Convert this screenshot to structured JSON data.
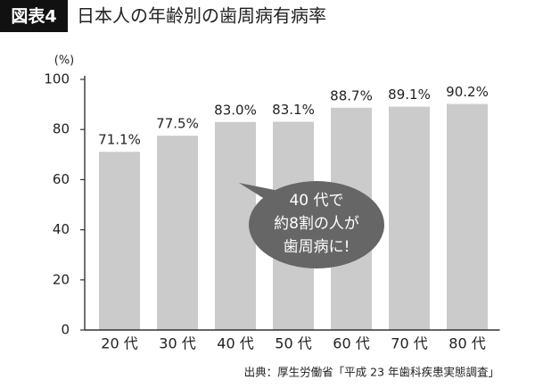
{
  "chart_data": {
    "type": "bar",
    "badge": "図表4",
    "title": "日本人の年齢別の歯周病有病率",
    "y_unit": "(%)",
    "categories": [
      "20 代",
      "30 代",
      "40 代",
      "50 代",
      "60 代",
      "70 代",
      "80 代"
    ],
    "values": [
      71.1,
      77.5,
      83.0,
      83.1,
      88.7,
      89.1,
      90.2
    ],
    "value_labels": [
      "71.1%",
      "77.5%",
      "83.0%",
      "83.1%",
      "88.7%",
      "89.1%",
      "90.2%"
    ],
    "color": "#cbcbcb",
    "ylim": [
      0,
      100
    ],
    "yticks": [
      0,
      20,
      40,
      60,
      80,
      100
    ],
    "grid": false,
    "annotation": [
      "40 代で",
      "約8割の人が",
      "歯周病に!"
    ],
    "source": "出典：厚生労働省「平成 23 年歯科疾患実態調査」"
  }
}
